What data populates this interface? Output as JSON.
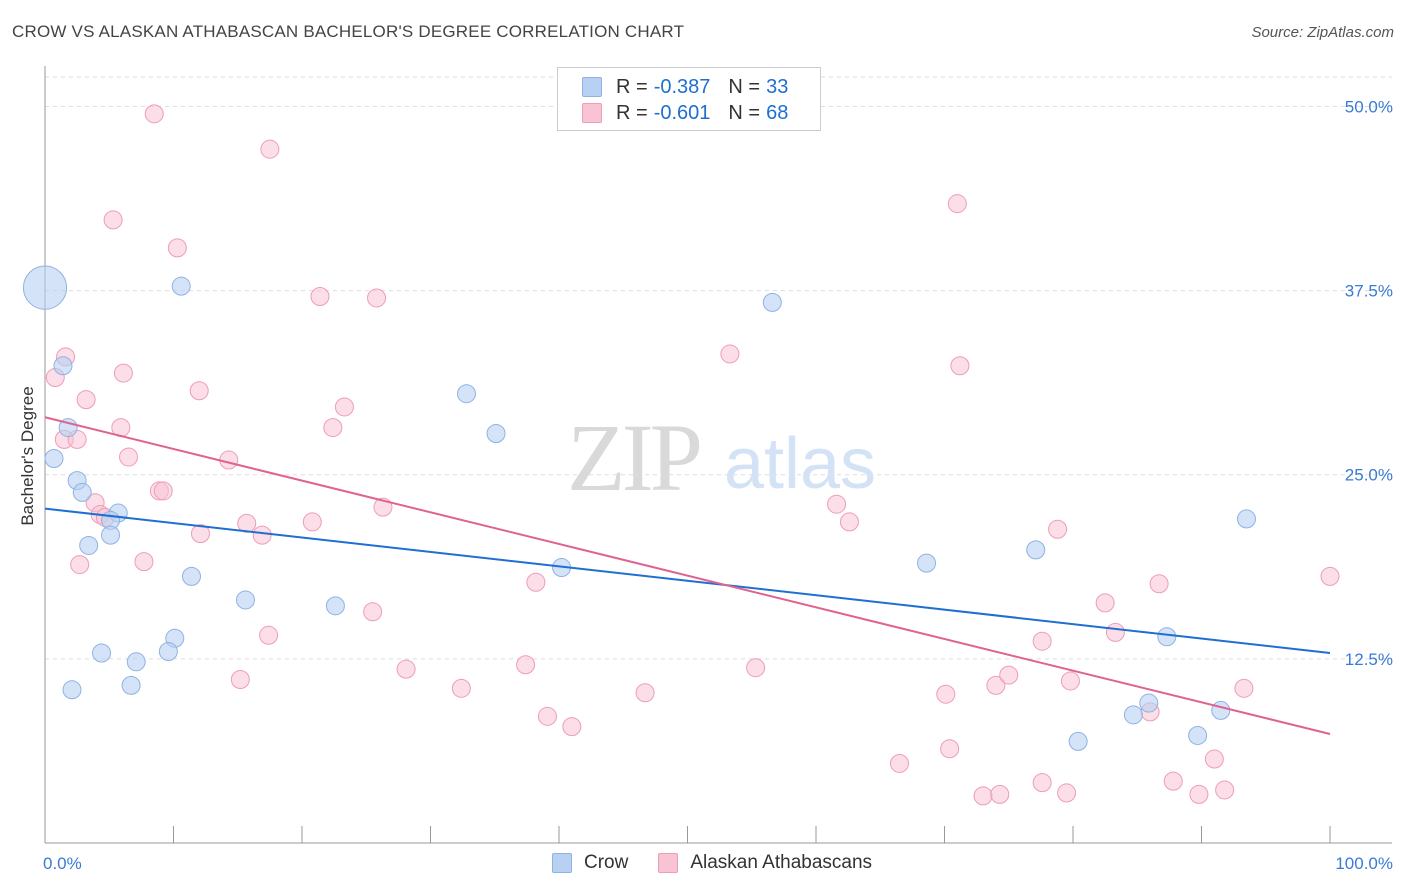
{
  "title": "CROW VS ALASKAN ATHABASCAN BACHELOR'S DEGREE CORRELATION CHART",
  "source": "Source: ZipAtlas.com",
  "watermark": {
    "zip": "ZIP",
    "atlas": "atlas"
  },
  "legend": {
    "rows": [
      {
        "r_label": "R =",
        "r_value": "-0.387",
        "n_label": "N =",
        "n_value": "33"
      },
      {
        "r_label": "R =",
        "r_value": "-0.601",
        "n_label": "N =",
        "n_value": "68"
      }
    ]
  },
  "bottom_legend": [
    "Crow",
    "Alaskan Athabascans"
  ],
  "colors": {
    "crow_fill": "#b8d0f2",
    "crow_stroke": "#8fb2e3",
    "crow_line": "#1e6fd0",
    "ath_fill": "#f8c3d3",
    "ath_stroke": "#ee9db7",
    "ath_line": "#e0628f",
    "tick_label": "#3a7bd5",
    "grid": "#dddddd"
  },
  "chart_data": {
    "type": "scatter",
    "title": "CROW VS ALASKAN ATHABASCAN BACHELOR'S DEGREE CORRELATION CHART",
    "xlabel": "",
    "ylabel": "Bachelor's Degree",
    "xlim": [
      0,
      100
    ],
    "ylim": [
      0,
      52
    ],
    "x_tick_labels": [
      "0.0%",
      "100.0%"
    ],
    "y_ticks": [
      12.5,
      25.0,
      37.5,
      50.0
    ],
    "y_tick_labels": [
      "12.5%",
      "25.0%",
      "37.5%",
      "50.0%"
    ],
    "series": [
      {
        "name": "Crow",
        "r": -0.387,
        "n": 33,
        "trend": {
          "x": [
            0,
            100
          ],
          "y": [
            22.7,
            12.9
          ]
        },
        "points": [
          [
            0.0,
            37.7,
            2.4
          ],
          [
            1.4,
            32.4,
            1
          ],
          [
            1.8,
            28.2,
            1
          ],
          [
            0.7,
            26.1,
            1
          ],
          [
            2.5,
            24.6,
            1
          ],
          [
            2.9,
            23.8,
            1
          ],
          [
            5.7,
            22.4,
            1
          ],
          [
            5.1,
            21.9,
            1
          ],
          [
            3.4,
            20.2,
            1
          ],
          [
            5.1,
            20.9,
            1
          ],
          [
            10.6,
            37.8,
            1
          ],
          [
            11.4,
            18.1,
            1
          ],
          [
            15.6,
            16.5,
            1
          ],
          [
            10.1,
            13.9,
            1
          ],
          [
            9.6,
            13.0,
            1
          ],
          [
            7.1,
            12.3,
            1
          ],
          [
            4.4,
            12.9,
            1
          ],
          [
            6.7,
            10.7,
            1
          ],
          [
            2.1,
            10.4,
            1
          ],
          [
            22.6,
            16.1,
            1
          ],
          [
            32.8,
            30.5,
            1
          ],
          [
            35.1,
            27.8,
            1
          ],
          [
            40.2,
            18.7,
            1
          ],
          [
            56.6,
            36.7,
            1
          ],
          [
            68.6,
            19.0,
            1
          ],
          [
            77.1,
            19.9,
            1
          ],
          [
            80.4,
            6.9,
            1
          ],
          [
            87.3,
            14.0,
            1
          ],
          [
            85.9,
            9.5,
            1
          ],
          [
            84.7,
            8.7,
            1
          ],
          [
            89.7,
            7.3,
            1
          ],
          [
            91.5,
            9.0,
            1
          ],
          [
            93.5,
            22.0,
            1
          ]
        ]
      },
      {
        "name": "Alaskan Athabascans",
        "r": -0.601,
        "n": 68,
        "trend": {
          "x": [
            0,
            100
          ],
          "y": [
            28.9,
            7.4
          ]
        },
        "points": [
          [
            8.5,
            49.5
          ],
          [
            17.5,
            47.1
          ],
          [
            5.3,
            42.3
          ],
          [
            10.3,
            40.4
          ],
          [
            21.4,
            37.1
          ],
          [
            25.8,
            37.0
          ],
          [
            1.6,
            33.0
          ],
          [
            0.8,
            31.6
          ],
          [
            6.1,
            31.9
          ],
          [
            12.0,
            30.7
          ],
          [
            3.2,
            30.1
          ],
          [
            23.3,
            29.6
          ],
          [
            5.9,
            28.2
          ],
          [
            1.5,
            27.4
          ],
          [
            2.5,
            27.4
          ],
          [
            22.4,
            28.2
          ],
          [
            6.5,
            26.2
          ],
          [
            14.3,
            26.0
          ],
          [
            8.9,
            23.9
          ],
          [
            9.2,
            23.9
          ],
          [
            3.9,
            23.1
          ],
          [
            4.3,
            22.3
          ],
          [
            4.7,
            22.1
          ],
          [
            15.7,
            21.7
          ],
          [
            20.8,
            21.8
          ],
          [
            16.9,
            20.9
          ],
          [
            12.1,
            21.0
          ],
          [
            26.3,
            22.8
          ],
          [
            7.7,
            19.1
          ],
          [
            2.7,
            18.9
          ],
          [
            38.2,
            17.7
          ],
          [
            25.5,
            15.7
          ],
          [
            17.4,
            14.1
          ],
          [
            15.2,
            11.1
          ],
          [
            28.1,
            11.8
          ],
          [
            32.4,
            10.5
          ],
          [
            37.4,
            12.1
          ],
          [
            39.1,
            8.6
          ],
          [
            41.0,
            7.9
          ],
          [
            46.7,
            10.2
          ],
          [
            53.3,
            33.2
          ],
          [
            55.3,
            11.9
          ],
          [
            61.6,
            23.0
          ],
          [
            62.6,
            21.8
          ],
          [
            71.0,
            43.4
          ],
          [
            71.2,
            32.4
          ],
          [
            66.5,
            5.4
          ],
          [
            70.1,
            10.1
          ],
          [
            70.4,
            6.4
          ],
          [
            74.0,
            10.7
          ],
          [
            73.0,
            3.2
          ],
          [
            74.3,
            3.3
          ],
          [
            75.0,
            11.4
          ],
          [
            77.6,
            4.1
          ],
          [
            77.6,
            13.7
          ],
          [
            78.8,
            21.3
          ],
          [
            79.5,
            3.4
          ],
          [
            79.8,
            11.0
          ],
          [
            82.5,
            16.3
          ],
          [
            83.3,
            14.3
          ],
          [
            86.7,
            17.6
          ],
          [
            87.8,
            4.2
          ],
          [
            89.8,
            3.3
          ],
          [
            91.0,
            5.7
          ],
          [
            91.8,
            3.6
          ],
          [
            93.3,
            10.5
          ],
          [
            100.0,
            18.1
          ],
          [
            86.0,
            8.9
          ]
        ]
      }
    ]
  }
}
